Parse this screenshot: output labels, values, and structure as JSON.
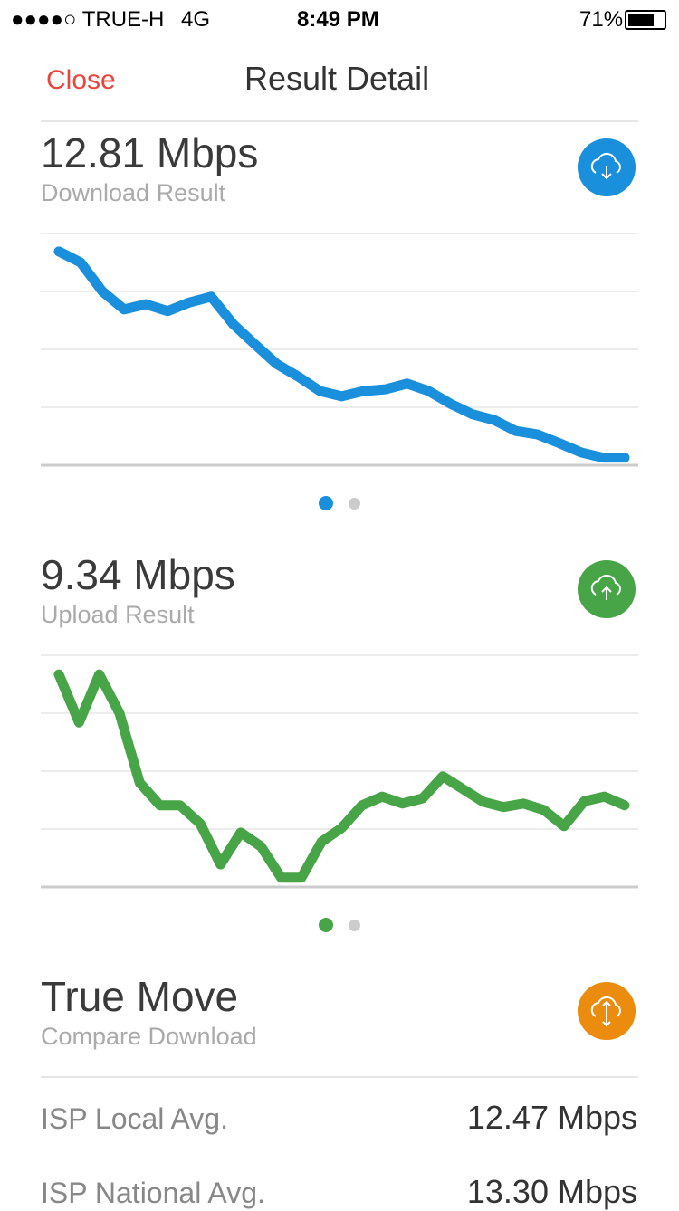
{
  "status_bar": {
    "carrier": "●●●●○ TRUE-H",
    "network": "4G",
    "time": "8:49 PM",
    "battery": "71%"
  },
  "header": {
    "close": "Close",
    "title": "Result Detail"
  },
  "download": {
    "speed": "12.81 Mbps",
    "label": "Download Result",
    "chart_data": {
      "type": "line",
      "color": "#1a8fdc",
      "ylim": [
        0,
        4
      ],
      "yticks": [
        0,
        1,
        2,
        3,
        4
      ],
      "grid": true,
      "values": [
        3.69,
        3.5,
        3.0,
        2.69,
        2.78,
        2.66,
        2.81,
        2.91,
        2.44,
        2.09,
        1.75,
        1.53,
        1.28,
        1.19,
        1.28,
        1.31,
        1.41,
        1.28,
        1.06,
        0.88,
        0.78,
        0.59,
        0.53,
        0.38,
        0.22,
        0.13,
        0.13
      ]
    }
  },
  "upload": {
    "speed": "9.34 Mbps",
    "label": "Upload Result",
    "chart_data": {
      "type": "line",
      "color": "#47a447",
      "ylim": [
        0,
        4
      ],
      "yticks": [
        0,
        1,
        2,
        3,
        4
      ],
      "grid": true,
      "values": [
        3.67,
        2.84,
        3.67,
        3.0,
        1.8,
        1.41,
        1.41,
        1.09,
        0.39,
        0.94,
        0.7,
        0.16,
        0.16,
        0.78,
        1.02,
        1.41,
        1.56,
        1.44,
        1.53,
        1.91,
        1.69,
        1.47,
        1.38,
        1.44,
        1.33,
        1.05,
        1.48,
        1.56,
        1.41
      ]
    }
  },
  "compare": {
    "title": "True Move",
    "label": "Compare Download",
    "rows": [
      {
        "name": "ISP Local Avg.",
        "value": "12.47 Mbps"
      },
      {
        "name": "ISP National Avg.",
        "value": "13.30 Mbps"
      }
    ]
  }
}
